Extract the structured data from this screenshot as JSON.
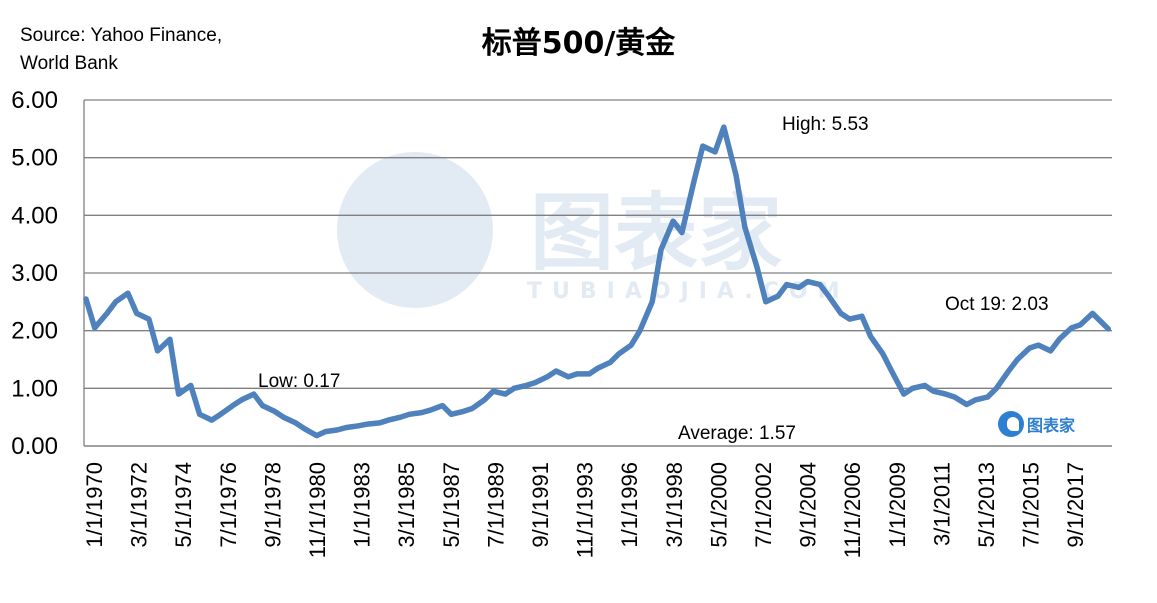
{
  "header": {
    "title": "标普500/黄金",
    "source_line1": "Source: Yahoo Finance,",
    "source_line2": "World Bank"
  },
  "watermark": {
    "text": "图表家",
    "subtext": "TUBIAOJIA.COM",
    "icon": "brain-head-icon"
  },
  "logo": {
    "text": "图表家",
    "icon": "brain-head-icon",
    "color": "#2f7fd0"
  },
  "colors": {
    "line": "#4f81bd",
    "grid": "#808080",
    "watermark": "#e2eaf4"
  },
  "chart_data": {
    "type": "line",
    "title": "标普500/黄金",
    "xlabel": "",
    "ylabel": "",
    "ylim": [
      0,
      6
    ],
    "yticks": [
      "0.00",
      "1.00",
      "2.00",
      "3.00",
      "4.00",
      "5.00",
      "6.00"
    ],
    "xticks": [
      "1/1/1970",
      "3/1/1972",
      "5/1/1974",
      "7/1/1976",
      "9/1/1978",
      "11/1/1980",
      "1/1/1983",
      "3/1/1985",
      "5/1/1987",
      "7/1/1989",
      "9/1/1991",
      "11/1/1993",
      "1/1/1996",
      "3/1/1998",
      "5/1/2000",
      "7/1/2002",
      "9/1/2004",
      "11/1/2006",
      "1/1/2009",
      "3/1/2011",
      "5/1/2013",
      "7/1/2015",
      "9/1/2017"
    ],
    "grid": true,
    "annotations": {
      "high": "High: 5.53",
      "low": "Low: 0.17",
      "average": "Average: 1.57",
      "latest": "Oct 19: 2.03"
    },
    "series": [
      {
        "x": [
          "1970-01",
          "1970-06",
          "1971-01",
          "1971-06",
          "1972-01",
          "1972-06",
          "1973-01",
          "1973-06",
          "1974-01",
          "1974-06",
          "1975-01",
          "1975-06",
          "1976-01",
          "1976-06",
          "1977-01",
          "1977-06",
          "1978-01",
          "1978-06",
          "1979-01",
          "1979-06",
          "1980-01",
          "1980-06",
          "1981-01",
          "1981-06",
          "1982-01",
          "1982-06",
          "1983-01",
          "1983-06",
          "1984-01",
          "1984-06",
          "1985-01",
          "1985-06",
          "1986-01",
          "1986-06",
          "1987-01",
          "1987-06",
          "1988-01",
          "1988-06",
          "1989-01",
          "1989-06",
          "1990-01",
          "1990-06",
          "1991-01",
          "1991-06",
          "1992-01",
          "1992-06",
          "1993-01",
          "1993-06",
          "1994-01",
          "1994-06",
          "1995-01",
          "1995-06",
          "1996-01",
          "1996-06",
          "1997-01",
          "1997-06",
          "1998-01",
          "1998-06",
          "1999-01",
          "1999-06",
          "2000-01",
          "2000-06",
          "2001-01",
          "2001-06",
          "2002-01",
          "2002-06",
          "2003-01",
          "2003-06",
          "2004-01",
          "2004-06",
          "2005-01",
          "2005-06",
          "2006-01",
          "2006-06",
          "2007-01",
          "2007-06",
          "2008-01",
          "2008-06",
          "2009-01",
          "2009-06",
          "2010-01",
          "2010-06",
          "2011-01",
          "2011-06",
          "2012-01",
          "2012-06",
          "2013-01",
          "2013-06",
          "2014-01",
          "2014-06",
          "2015-01",
          "2015-06",
          "2016-01",
          "2016-06",
          "2017-01",
          "2017-06",
          "2018-01",
          "2018-06",
          "2018-10"
        ],
        "values": [
          2.55,
          2.05,
          2.3,
          2.5,
          2.65,
          2.3,
          2.2,
          1.65,
          1.85,
          0.9,
          1.05,
          0.55,
          0.45,
          0.55,
          0.7,
          0.8,
          0.9,
          0.7,
          0.6,
          0.5,
          0.4,
          0.3,
          0.18,
          0.25,
          0.28,
          0.32,
          0.35,
          0.38,
          0.4,
          0.45,
          0.5,
          0.55,
          0.58,
          0.62,
          0.7,
          0.55,
          0.6,
          0.65,
          0.8,
          0.95,
          0.9,
          1.0,
          1.05,
          1.1,
          1.2,
          1.3,
          1.2,
          1.25,
          1.25,
          1.35,
          1.45,
          1.6,
          1.75,
          2.0,
          2.5,
          3.4,
          3.9,
          3.7,
          4.6,
          5.2,
          5.1,
          5.53,
          4.7,
          3.8,
          3.1,
          2.5,
          2.6,
          2.8,
          2.75,
          2.85,
          2.8,
          2.6,
          2.3,
          2.2,
          2.25,
          1.9,
          1.6,
          1.3,
          0.9,
          1.0,
          1.05,
          0.95,
          0.9,
          0.85,
          0.72,
          0.8,
          0.85,
          1.0,
          1.3,
          1.5,
          1.7,
          1.75,
          1.65,
          1.85,
          2.05,
          2.1,
          2.3,
          2.15,
          2.03
        ]
      }
    ]
  }
}
